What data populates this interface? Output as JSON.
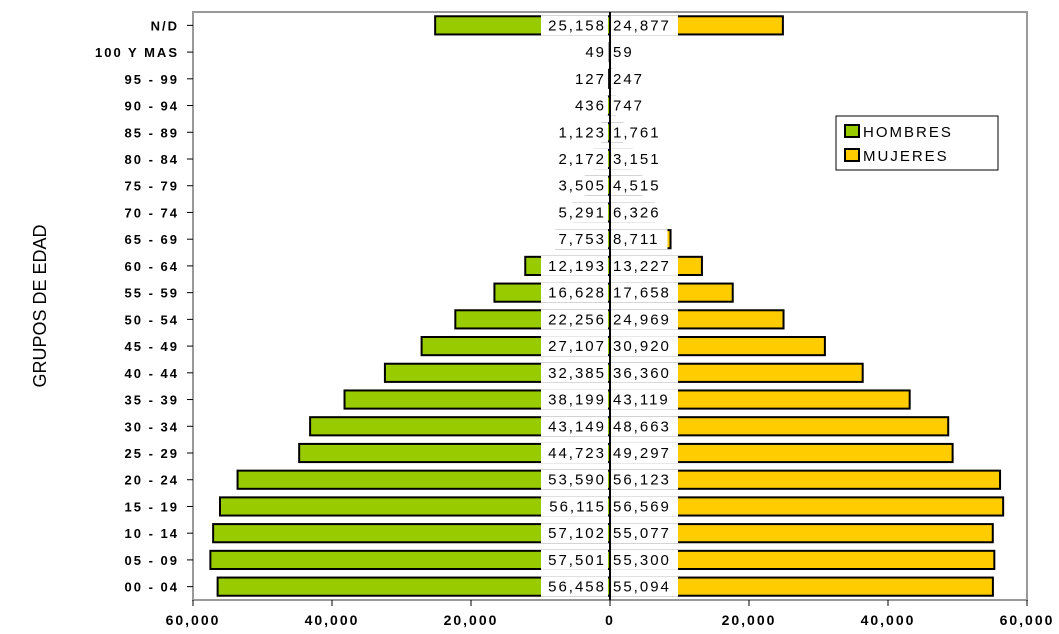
{
  "chart_data": {
    "type": "bar",
    "orientation": "horizontal",
    "ylabel": "GRUPOS DE EDAD",
    "categories": [
      "N/D",
      "100 Y MAS",
      "95 - 99",
      "90 - 94",
      "85 - 89",
      "80 - 84",
      "75 - 79",
      "70 - 74",
      "65 - 69",
      "60 - 64",
      "55 - 59",
      "50 - 54",
      "45 - 49",
      "40 - 44",
      "35 - 39",
      "30 - 34",
      "25 - 29",
      "20 - 24",
      "15 - 19",
      "10 - 14",
      "05 - 09",
      "00 - 04"
    ],
    "series": [
      {
        "name": "HOMBRES",
        "color": "#99cc00",
        "side": "left",
        "values": [
          25158,
          49,
          127,
          436,
          1123,
          2172,
          3505,
          5291,
          7753,
          12193,
          16628,
          22256,
          27107,
          32385,
          38199,
          43149,
          44723,
          53590,
          56115,
          57102,
          57501,
          56458
        ],
        "labels": [
          "25,158",
          "49",
          "127",
          "436",
          "1,123",
          "2,172",
          "3,505",
          "5,291",
          "7,753",
          "12,193",
          "16,628",
          "22,256",
          "27,107",
          "32,385",
          "38,199",
          "43,149",
          "44,723",
          "53,590",
          "56,115",
          "57,102",
          "57,501",
          "56,458"
        ]
      },
      {
        "name": "MUJERES",
        "color": "#ffcc00",
        "side": "right",
        "values": [
          24877,
          59,
          247,
          747,
          1761,
          3151,
          4515,
          6326,
          8711,
          13227,
          17658,
          24969,
          30920,
          36360,
          43119,
          48663,
          49297,
          56123,
          56569,
          55077,
          55300,
          55094
        ],
        "labels": [
          "24,877",
          "59",
          "247",
          "747",
          "1,761",
          "3,151",
          "4,515",
          "6,326",
          "8,711",
          "13,227",
          "17,658",
          "24,969",
          "30,920",
          "36,360",
          "43,119",
          "48,663",
          "49,297",
          "56,123",
          "56,569",
          "55,077",
          "55,300",
          "55,094"
        ]
      }
    ],
    "xlim": [
      -60000,
      60000
    ],
    "xticks": [
      -60000,
      -40000,
      -20000,
      0,
      20000,
      40000,
      60000
    ],
    "xtick_labels": [
      "60,000",
      "40,000",
      "20,000",
      "0",
      "20,000",
      "40,000",
      "60,000"
    ],
    "legend_position": "top-right",
    "grid": false
  }
}
